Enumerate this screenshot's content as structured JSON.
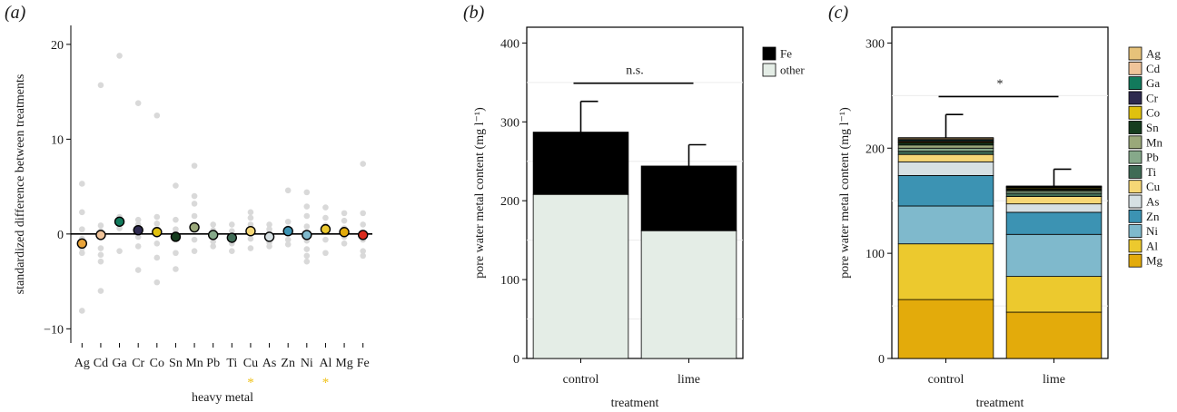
{
  "chart_data": [
    {
      "type": "scatter",
      "panel_label": "(a)",
      "xlabel": "heavy metal",
      "ylabel": "standardized difference between treatments",
      "ylim": [
        -11.5,
        22
      ],
      "yticks": [
        -10,
        0,
        10,
        20
      ],
      "categories": [
        "Ag",
        "Cd",
        "Ga",
        "Cr",
        "Co",
        "Sn",
        "Mn",
        "Pb",
        "Ti",
        "Cu",
        "As",
        "Zn",
        "Ni",
        "Al",
        "Mg",
        "Fe"
      ],
      "means": [
        -1.0,
        -0.1,
        1.3,
        0.4,
        0.2,
        -0.3,
        0.7,
        -0.1,
        -0.4,
        0.3,
        -0.3,
        0.3,
        -0.1,
        0.5,
        0.2,
        -0.1
      ],
      "mean_colors": [
        "#e8a33a",
        "#f0c49a",
        "#127a5c",
        "#2e2a4f",
        "#e0c10e",
        "#163d1f",
        "#9aa87a",
        "#86a98a",
        "#3f6b55",
        "#f6d776",
        "#d6e0e3",
        "#3c93b3",
        "#7fb9cc",
        "#ecc92e",
        "#e3ab0b",
        "#d92b1e"
      ],
      "replicates": [
        [
          5.3,
          2.3,
          0.5,
          -0.5,
          -1.5,
          -2.0,
          -8.1
        ],
        [
          15.7,
          0.9,
          0.3,
          -1.5,
          -2.2,
          -2.9,
          -6.0
        ],
        [
          18.8,
          1.8,
          0.6,
          -1.8
        ],
        [
          13.8,
          1.5,
          1.0,
          -0.3,
          -1.3,
          -3.8
        ],
        [
          12.5,
          1.8,
          1.1,
          -1.0,
          -2.5,
          -5.1
        ],
        [
          5.1,
          1.5,
          0.5,
          -0.5,
          -2.0,
          -3.7
        ],
        [
          7.2,
          4.0,
          3.2,
          1.9,
          0.9,
          -0.6,
          -1.8
        ],
        [
          1.0,
          0.4,
          -0.2,
          -0.8,
          -1.3
        ],
        [
          1.0,
          0.3,
          -0.3,
          -1.0,
          -1.8
        ],
        [
          2.3,
          1.7,
          1.0,
          0.5,
          -0.5,
          -1.5
        ],
        [
          1.0,
          0.5,
          -0.4,
          -0.9,
          -1.3
        ],
        [
          4.6,
          1.3,
          0.6,
          -0.6,
          -1.1
        ],
        [
          4.4,
          2.9,
          1.9,
          0.8,
          -0.7,
          -1.6,
          -2.3,
          -2.9
        ],
        [
          2.8,
          1.7,
          0.9,
          0.2,
          -0.6,
          -2.0
        ],
        [
          2.2,
          1.4,
          0.6,
          -0.3,
          -1.0
        ],
        [
          7.4,
          2.2,
          1.0,
          -0.6,
          -1.8,
          -2.3
        ]
      ],
      "markers": [
        {
          "category": "Cu",
          "label": "*",
          "color": "#f0c21a"
        },
        {
          "category": "Al",
          "label": "*",
          "color": "#f0c21a"
        }
      ]
    },
    {
      "type": "bar",
      "stacked": true,
      "panel_label": "(b)",
      "xlabel": "treatment",
      "ylabel": "pore water metal content (mg l⁻¹)",
      "ylim": [
        0,
        420
      ],
      "yticks": [
        0,
        100,
        200,
        300,
        400
      ],
      "gridlines": [
        50,
        150,
        250,
        350
      ],
      "categories": [
        "control",
        "lime"
      ],
      "series": [
        {
          "name": "other",
          "color": "#e4ede6",
          "values": [
            208,
            162
          ]
        },
        {
          "name": "Fe",
          "color": "#000000",
          "values": [
            79,
            82
          ]
        }
      ],
      "error_top": [
        326,
        271
      ],
      "legend_order": [
        "Fe",
        "other"
      ],
      "significance": {
        "label": "n.s.",
        "y": 349
      },
      "legend_position": "right"
    },
    {
      "type": "bar",
      "stacked": true,
      "panel_label": "(c)",
      "xlabel": "treatment",
      "ylabel": "pore water metal content (mg l⁻¹)",
      "ylim": [
        0,
        315
      ],
      "yticks": [
        0,
        100,
        200,
        300
      ],
      "gridlines": [
        50,
        150,
        250
      ],
      "categories": [
        "control",
        "lime"
      ],
      "series": [
        {
          "name": "Mg",
          "color": "#e3ab0b",
          "values": [
            56,
            44
          ]
        },
        {
          "name": "Al",
          "color": "#ecc92e",
          "values": [
            53,
            34
          ]
        },
        {
          "name": "Ni",
          "color": "#7fb9cc",
          "values": [
            36,
            40
          ]
        },
        {
          "name": "Zn",
          "color": "#3c93b3",
          "values": [
            29,
            21
          ]
        },
        {
          "name": "As",
          "color": "#d6e0e3",
          "values": [
            13,
            8
          ]
        },
        {
          "name": "Cu",
          "color": "#f6d776",
          "values": [
            7,
            7
          ]
        },
        {
          "name": "Ti",
          "color": "#3f6b55",
          "values": [
            3,
            3
          ]
        },
        {
          "name": "Pb",
          "color": "#86a98a",
          "values": [
            3,
            2
          ]
        },
        {
          "name": "Mn",
          "color": "#9aa87a",
          "values": [
            3,
            1
          ]
        },
        {
          "name": "Sn",
          "color": "#163d1f",
          "values": [
            2,
            1
          ]
        },
        {
          "name": "Co",
          "color": "#e0c10e",
          "values": [
            1,
            1
          ]
        },
        {
          "name": "Cr",
          "color": "#2e2a4f",
          "values": [
            1,
            0.5
          ]
        },
        {
          "name": "Ga",
          "color": "#127a5c",
          "values": [
            1,
            0.5
          ]
        },
        {
          "name": "Cd",
          "color": "#f0c49a",
          "values": [
            1,
            0.5
          ]
        },
        {
          "name": "Ag",
          "color": "#e6c27a",
          "values": [
            1,
            0.5
          ]
        }
      ],
      "error_top": [
        232,
        180
      ],
      "legend_order": [
        "Ag",
        "Cd",
        "Ga",
        "Cr",
        "Co",
        "Sn",
        "Mn",
        "Pb",
        "Ti",
        "Cu",
        "As",
        "Zn",
        "Ni",
        "Al",
        "Mg"
      ],
      "significance": {
        "label": "*",
        "y": 249
      },
      "legend_position": "right"
    }
  ]
}
